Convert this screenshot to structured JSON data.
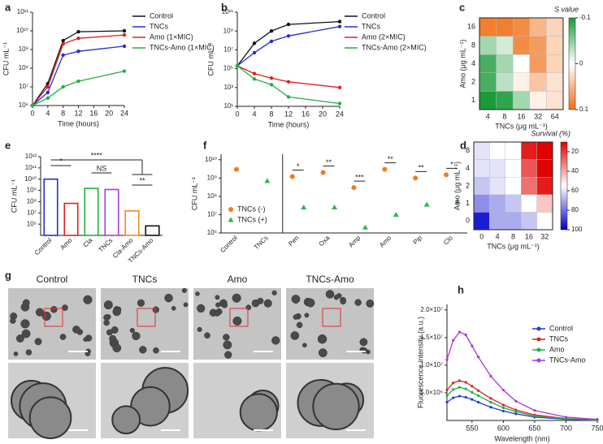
{
  "chart_data": [
    {
      "panel": "a",
      "type": "line",
      "ylabel": "CFU mL⁻¹",
      "xlabel": "Time (hours)",
      "x": [
        0,
        4,
        8,
        12,
        24
      ],
      "xlim": [
        0,
        24
      ],
      "xticks": [
        0,
        4,
        8,
        12,
        16,
        20,
        24
      ],
      "ylog": true,
      "ylim": [
        1000000.0,
        100000000000.0
      ],
      "yticks": [
        {
          "value": 1000000.0,
          "label": "10⁶"
        },
        {
          "value": 10000000.0,
          "label": "10⁷"
        },
        {
          "value": 100000000.0,
          "label": "10⁸"
        },
        {
          "value": 1000000000.0,
          "label": "10⁹"
        },
        {
          "value": 10000000000.0,
          "label": "10¹⁰"
        },
        {
          "value": 100000000000.0,
          "label": "10¹¹"
        }
      ],
      "legend": "outside right",
      "series": [
        {
          "name": "Control",
          "color": "#111111",
          "values": [
            1000000.0,
            15000000.0,
            3000000000.0,
            9000000000.0,
            10000000000.0
          ]
        },
        {
          "name": "TNCs",
          "color": "#2030d0",
          "values": [
            1000000.0,
            5000000.0,
            500000000.0,
            800000000.0,
            1500000000.0
          ]
        },
        {
          "name": "Amo (1×MIC)",
          "color": "#e02020",
          "values": [
            1000000.0,
            10000000.0,
            2000000000.0,
            4000000000.0,
            6000000000.0
          ]
        },
        {
          "name": "TNCs-Amo (1×MIC)",
          "color": "#20b040",
          "values": [
            1000000.0,
            2500000.0,
            10000000.0,
            20000000.0,
            70000000.0
          ]
        }
      ]
    },
    {
      "panel": "b",
      "type": "line",
      "ylabel": "CFU mL⁻¹",
      "xlabel": "Time (hours)",
      "x": [
        0,
        4,
        8,
        12,
        24
      ],
      "xlim": [
        0,
        24
      ],
      "xticks": [
        0,
        4,
        8,
        12,
        16,
        20,
        24
      ],
      "ylog": true,
      "ylim": [
        10.0,
        100000000000.0
      ],
      "yticks": [
        {
          "value": 10.0,
          "label": "10¹"
        },
        {
          "value": 1000.0,
          "label": "10³"
        },
        {
          "value": 100000.0,
          "label": "10⁵"
        },
        {
          "value": 10000000.0,
          "label": "10⁷"
        },
        {
          "value": 1000000000.0,
          "label": "10⁹"
        },
        {
          "value": 100000000000.0,
          "label": "10¹¹"
        }
      ],
      "legend": "outside right",
      "series": [
        {
          "name": "Control",
          "color": "#111111",
          "values": [
            200000.0,
            50000000.0,
            1000000000.0,
            5000000000.0,
            10000000000.0
          ]
        },
        {
          "name": "TNCs",
          "color": "#2030d0",
          "values": [
            200000.0,
            5000000.0,
            80000000.0,
            300000000.0,
            3000000000.0
          ]
        },
        {
          "name": "Amo (2×MIC)",
          "color": "#e02020",
          "values": [
            200000.0,
            30000.0,
            10000.0,
            4000.0,
            1000.0
          ]
        },
        {
          "name": "TNCs-Amo (2×MIC)",
          "color": "#20b040",
          "values": [
            200000.0,
            8000.0,
            2000.0,
            100.0,
            20.0
          ]
        }
      ]
    },
    {
      "panel": "c",
      "type": "heatmap",
      "ylabel": "Amo (μg mL⁻¹)",
      "xlabel": "TNCs (μg mL⁻¹)",
      "zlabel": "S value",
      "xcategories": [
        "4",
        "8",
        "16",
        "32",
        "64"
      ],
      "ycategories": [
        "1",
        "2",
        "4",
        "8",
        "16"
      ],
      "z": [
        [
          -0.1,
          -0.09,
          -0.04,
          0.01,
          0.02
        ],
        [
          -0.08,
          -0.03,
          0.01,
          0.04,
          0.02
        ],
        [
          -0.08,
          -0.04,
          0,
          0.07,
          0.03
        ],
        [
          -0.04,
          -0.02,
          0.08,
          0.07,
          0.03
        ],
        [
          0.09,
          0.09,
          0.08,
          0.05,
          0.03
        ]
      ],
      "zlim": [
        -0.1,
        0.1
      ],
      "zticks": [
        -0.1,
        0,
        0.1
      ],
      "colors": [
        "#1a9a3a",
        "#ffffff",
        "#f07018"
      ]
    },
    {
      "panel": "e",
      "type": "bar",
      "ylabel": "CFU mL⁻¹",
      "categories": [
        "Control",
        "Amo",
        "Cla",
        "TNCs",
        "Cla-Amo",
        "TNCs-Amo"
      ],
      "values": [
        10000000000.0,
        70000000.0,
        1500000000.0,
        1200000000.0,
        15000000.0,
        700000.0
      ],
      "colors": [
        "#2030d0",
        "#e02020",
        "#20b040",
        "#a040e0",
        "#f08a20",
        "#111111"
      ],
      "ylog": true,
      "ylim": [
        100000.0,
        1000000000000.0
      ],
      "yticks": [
        {
          "value": 1000000.0,
          "label": "10⁶"
        },
        {
          "value": 10000000.0,
          "label": "10⁷"
        },
        {
          "value": 100000000.0,
          "label": "10⁸"
        },
        {
          "value": 1000000000.0,
          "label": "10⁹"
        },
        {
          "value": 10000000000.0,
          "label": "10¹⁰"
        },
        {
          "value": 100000000000.0,
          "label": "10¹¹"
        },
        {
          "value": 1000000000000.0,
          "label": "10¹²"
        }
      ],
      "annotations": [
        "*",
        "****",
        "NS",
        "**"
      ]
    },
    {
      "panel": "f",
      "type": "dot",
      "ylabel": "CFU mL⁻¹",
      "categories": [
        "Control",
        "TNCs",
        "Pen",
        "Oxa",
        "Amp",
        "Amo",
        "Pip",
        "Clo"
      ],
      "ylog": true,
      "ylim": [
        1000000.0,
        20000000000.0
      ],
      "yticks": [
        {
          "value": 1000000.0,
          "label": "10⁶"
        },
        {
          "value": 10000000.0,
          "label": "10⁷"
        },
        {
          "value": 100000000.0,
          "label": "10⁸"
        },
        {
          "value": 1000000000.0,
          "label": "10⁹"
        },
        {
          "value": 10000000000.0,
          "label": "10¹⁰"
        }
      ],
      "legend": "lower left",
      "series": [
        {
          "name": "TNCs (-)",
          "color": "#f07a20",
          "marker": "circle",
          "values": [
            3000000000.0,
            null,
            1200000000.0,
            2000000000.0,
            300000000.0,
            3000000000.0,
            1000000000.0,
            1500000000.0
          ]
        },
        {
          "name": "TNCs (+)",
          "color": "#2db84a",
          "marker": "triangle",
          "values": [
            null,
            700000000.0,
            25000000.0,
            25000000.0,
            2000000.0,
            10000000.0,
            35000000.0,
            50000000.0
          ]
        }
      ],
      "annotations": [
        null,
        null,
        "*",
        "**",
        "***",
        "**",
        "**",
        "*"
      ]
    },
    {
      "panel": "d",
      "type": "heatmap",
      "ylabel": "Amo (μg mL⁻¹)",
      "xlabel": "TNCs (μg mL⁻¹)",
      "zlabel": "Survival  (%)",
      "xcategories": [
        "0",
        "4",
        "8",
        "16",
        "32"
      ],
      "ycategories": [
        "0",
        "1",
        "2",
        "4",
        "8"
      ],
      "z": [
        [
          95,
          70,
          70,
          65,
          55
        ],
        [
          75,
          70,
          65,
          55,
          45
        ],
        [
          65,
          60,
          55,
          30,
          15
        ],
        [
          60,
          60,
          55,
          25,
          10
        ],
        [
          60,
          55,
          55,
          15,
          5
        ]
      ],
      "zlim": [
        10,
        100
      ],
      "zticks": [
        20,
        40,
        60,
        80,
        100
      ],
      "colors": [
        "#e00000",
        "#ffffff",
        "#0000d0"
      ]
    },
    {
      "panel": "g",
      "type": "image",
      "labels": [
        "Control",
        "TNCs",
        "Amo",
        "TNCs-Amo"
      ]
    },
    {
      "panel": "h",
      "type": "line",
      "ylabel": "Fluorescence intensity (a.u.)",
      "xlabel": "Wavelength (nm)",
      "x": [
        510,
        520,
        530,
        540,
        550,
        560,
        580,
        600,
        620,
        650,
        700,
        750
      ],
      "xlim": [
        510,
        750
      ],
      "xticks": [
        550,
        600,
        650,
        700,
        750
      ],
      "ylim": [
        0,
        21000000.0
      ],
      "yticks": [
        {
          "value": 5000000.0,
          "label": "5.0×10⁶"
        },
        {
          "value": 10000000.0,
          "label": "1.0×10⁷"
        },
        {
          "value": 15000000.0,
          "label": "1.5×10⁷"
        },
        {
          "value": 20000000.0,
          "label": "2.0×10⁷"
        }
      ],
      "legend": "upper right",
      "series": [
        {
          "name": "Control",
          "color": "#1f3fd0",
          "values": [
            3300000.0,
            4100000.0,
            4400000.0,
            4200000.0,
            3800000.0,
            3300000.0,
            2400000.0,
            1700000.0,
            1200000.0,
            600000.0,
            200000.0,
            100000.0
          ]
        },
        {
          "name": "TNCs",
          "color": "#e02020",
          "values": [
            5500000.0,
            6800000.0,
            7200000.0,
            6900000.0,
            6200000.0,
            5400000.0,
            4000000.0,
            2800000.0,
            1900000.0,
            1000000.0,
            350000.0,
            100000.0
          ]
        },
        {
          "name": "Amo",
          "color": "#20b040",
          "values": [
            4500000.0,
            5600000.0,
            6000000.0,
            5700000.0,
            5100000.0,
            4500000.0,
            3300000.0,
            2300000.0,
            1600000.0,
            800000.0,
            300000.0,
            100000.0
          ]
        },
        {
          "name": "TNCs-Amo",
          "color": "#b030e0",
          "values": [
            11000000.0,
            14500000.0,
            16000000.0,
            15500000.0,
            13500000.0,
            11500000.0,
            8000000.0,
            5500000.0,
            3500000.0,
            1800000.0,
            600000.0,
            200000.0
          ]
        }
      ]
    }
  ]
}
